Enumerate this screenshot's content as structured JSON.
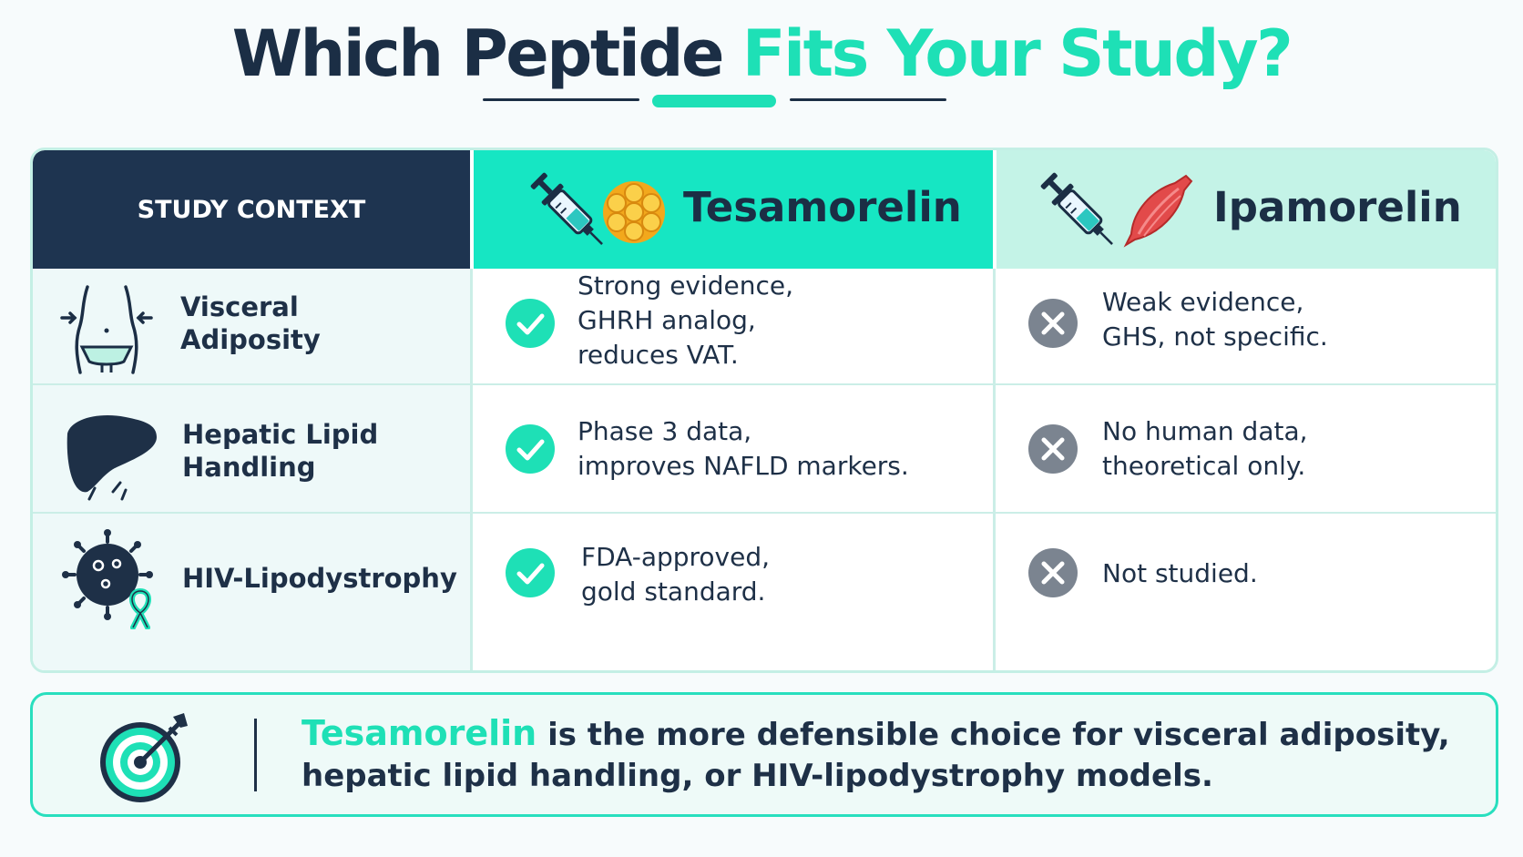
{
  "title": {
    "part1": "Which Peptide",
    "part2": "Fits Your Study?"
  },
  "header": {
    "context_label": "STUDY CONTEXT",
    "col1_name": "Tesamorelin",
    "col2_name": "Ipamorelin"
  },
  "rows": [
    {
      "context": "Visceral Adiposity",
      "icon": "waist-icon",
      "col1": {
        "status": "check",
        "text": [
          "Strong evidence,",
          "GHRH analog,",
          "reduces VAT."
        ]
      },
      "col2": {
        "status": "cross",
        "text": [
          "Weak evidence,",
          "GHS, not specific."
        ]
      }
    },
    {
      "context": "Hepatic Lipid Handling",
      "icon": "liver-icon",
      "col1": {
        "status": "check",
        "text": [
          "Phase 3 data,",
          "improves NAFLD markers."
        ]
      },
      "col2": {
        "status": "cross",
        "text": [
          "No human data,",
          "theoretical only."
        ]
      }
    },
    {
      "context": "HIV-Lipodystrophy",
      "icon": "virus-ribbon-icon",
      "col1": {
        "status": "check",
        "text": [
          "FDA-approved,",
          "gold standard."
        ]
      },
      "col2": {
        "status": "cross",
        "text": [
          "Not studied."
        ]
      }
    }
  ],
  "summary": {
    "highlight": "Tesamorelin",
    "line1_rest": " is the more defensible choice for visceral adiposity,",
    "line2": "hepatic lipid handling, or HIV-lipodystrophy models."
  },
  "colors": {
    "accent": "#1ee0b6",
    "navy": "#1b2e45",
    "check": "#1ee0b6",
    "cross": "#7b8490",
    "muscle": "#e24a4a",
    "fat": "#f6b92b"
  }
}
